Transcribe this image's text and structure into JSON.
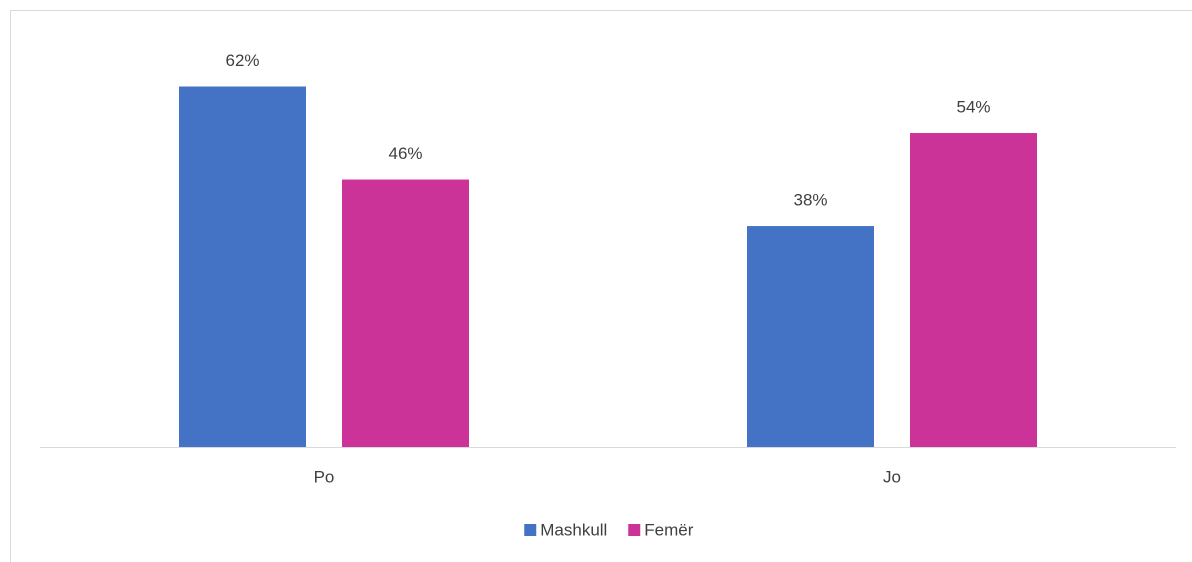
{
  "chart_data": {
    "type": "bar",
    "categories": [
      "Po",
      "Jo"
    ],
    "series": [
      {
        "name": "Mashkull",
        "color": "#4472c4",
        "values": [
          62,
          38
        ],
        "value_labels": [
          "62%",
          "38%"
        ]
      },
      {
        "name": "Femër",
        "color": "#cc3399",
        "values": [
          46,
          54
        ],
        "value_labels": [
          "46%",
          "54%"
        ]
      }
    ],
    "ylim": [
      0,
      70
    ],
    "legend": "bottom"
  }
}
